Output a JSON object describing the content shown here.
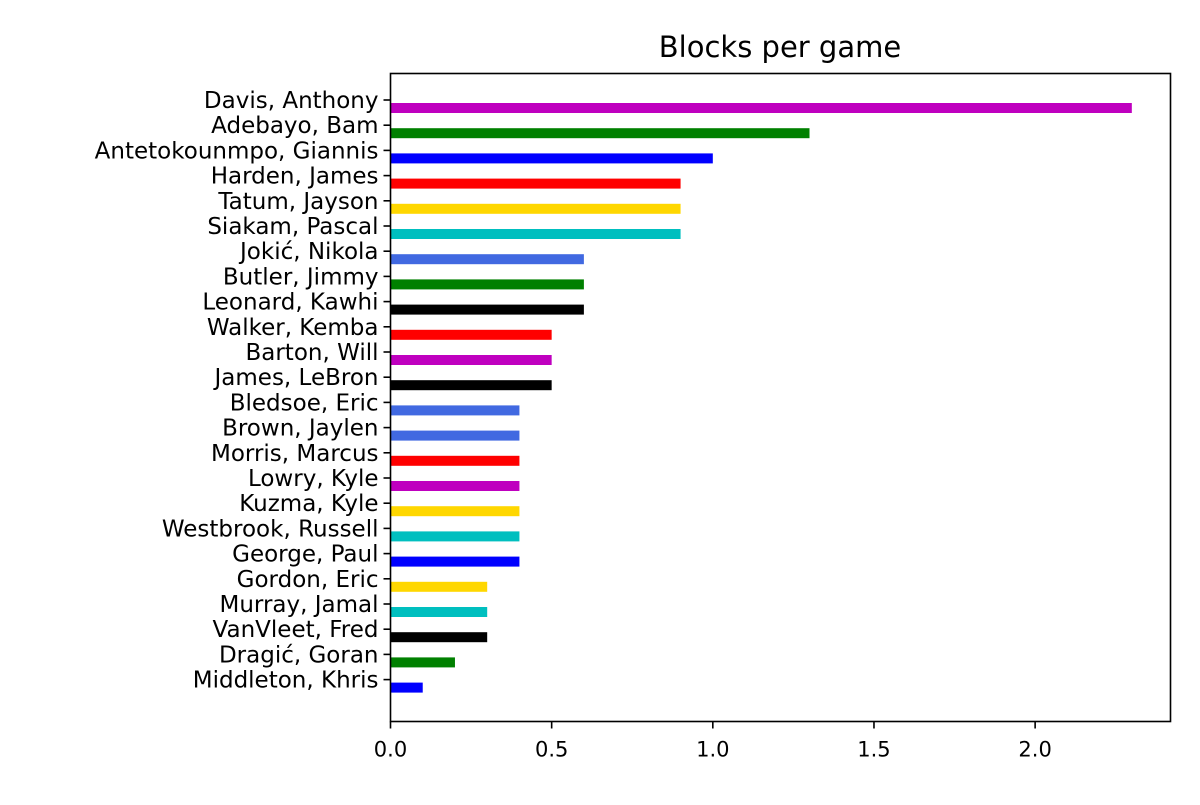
{
  "chart_data": {
    "type": "bar",
    "orientation": "horizontal",
    "title": "Blocks per game",
    "xlabel": "",
    "ylabel": "",
    "xlim": [
      0,
      2.42
    ],
    "xticks": [
      "0.0",
      "0.5",
      "1.0",
      "1.5",
      "2.0"
    ],
    "grid": false,
    "categories": [
      "Davis, Anthony",
      "Adebayo, Bam",
      "Antetokounmpo, Giannis",
      "Harden, James",
      "Tatum, Jayson",
      "Siakam, Pascal",
      "Jokić, Nikola",
      "Butler, Jimmy",
      "Leonard, Kawhi",
      "Walker, Kemba",
      "Barton, Will",
      "James, LeBron",
      "Bledsoe, Eric",
      "Brown, Jaylen",
      "Morris, Marcus",
      "Lowry, Kyle",
      "Kuzma, Kyle",
      "Westbrook, Russell",
      "George, Paul",
      "Gordon, Eric",
      "Murray, Jamal",
      "VanVleet, Fred",
      "Dragić, Goran",
      "Middleton, Khris"
    ],
    "values": [
      2.3,
      1.3,
      1.0,
      0.9,
      0.9,
      0.9,
      0.6,
      0.6,
      0.6,
      0.5,
      0.5,
      0.5,
      0.4,
      0.4,
      0.4,
      0.4,
      0.4,
      0.4,
      0.4,
      0.3,
      0.3,
      0.3,
      0.2,
      0.1
    ],
    "colors": [
      "#bf00bf",
      "#008000",
      "#0000ff",
      "#ff0000",
      "#ffd700",
      "#00bfbf",
      "#4169e1",
      "#008000",
      "#000000",
      "#ff0000",
      "#bf00bf",
      "#000000",
      "#4169e1",
      "#4169e1",
      "#ff0000",
      "#bf00bf",
      "#ffd700",
      "#00bfbf",
      "#0000ff",
      "#ffd700",
      "#00bfbf",
      "#000000",
      "#008000",
      "#0000ff"
    ]
  }
}
